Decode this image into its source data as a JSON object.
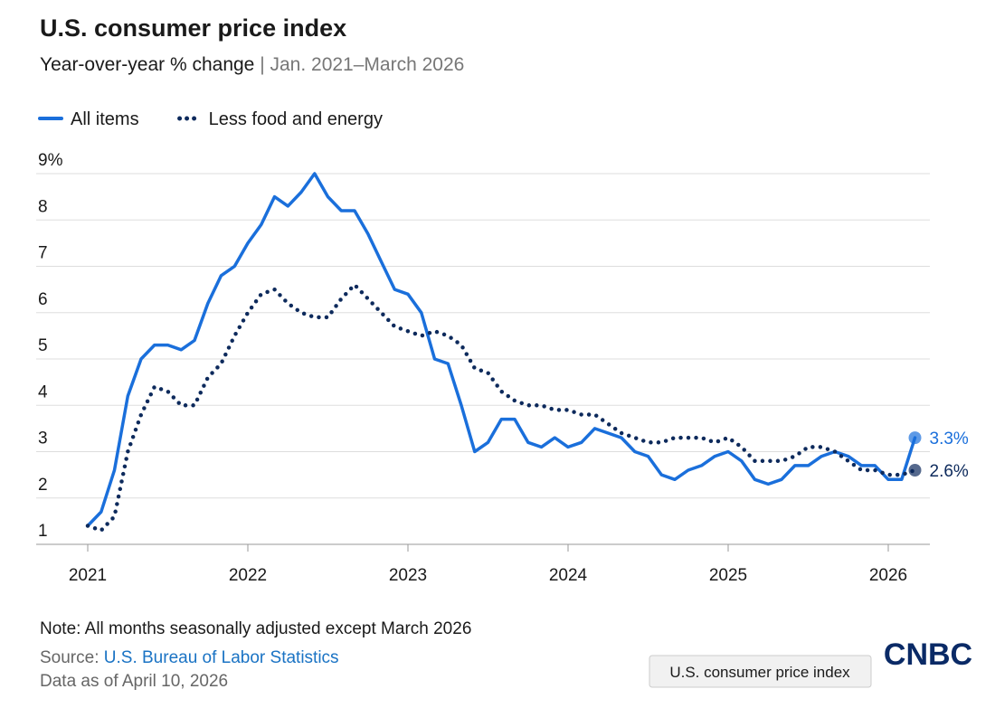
{
  "chart_data": {
    "type": "line",
    "title": "U.S. consumer price index",
    "subtitle": "Year-over-year % change",
    "subtitle_range": "| Jan. 2021–March 2026",
    "categories": [
      "2021",
      null,
      null,
      null,
      null,
      null,
      null,
      null,
      null,
      null,
      null,
      null,
      "2022",
      null,
      null,
      null,
      null,
      null,
      null,
      null,
      null,
      null,
      null,
      null,
      "2023",
      null,
      null,
      null,
      null,
      null,
      null,
      null,
      null,
      null,
      null,
      null,
      "2024",
      null,
      null,
      null,
      null,
      null,
      null,
      null,
      null,
      null,
      null,
      null,
      "2025",
      null,
      null,
      null,
      null,
      null,
      null,
      null,
      null,
      null,
      null,
      null,
      "2026",
      null,
      null
    ],
    "series": [
      {
        "name": "All items",
        "color": "#1a6fdb",
        "style": "solid",
        "values": [
          1.4,
          1.7,
          2.6,
          4.2,
          5.0,
          5.3,
          5.3,
          5.2,
          5.4,
          6.2,
          6.8,
          7.0,
          7.5,
          7.9,
          8.5,
          8.3,
          8.6,
          9.0,
          8.5,
          8.2,
          8.2,
          7.7,
          7.1,
          6.5,
          6.4,
          6.0,
          5.0,
          4.9,
          4.0,
          3.0,
          3.2,
          3.7,
          3.7,
          3.2,
          3.1,
          3.3,
          3.1,
          3.2,
          3.5,
          3.4,
          3.3,
          3.0,
          2.9,
          2.5,
          2.4,
          2.6,
          2.7,
          2.9,
          3.0,
          2.8,
          2.4,
          2.3,
          2.4,
          2.7,
          2.7,
          2.9,
          3.0,
          2.9,
          2.7,
          2.7,
          2.4,
          2.4,
          3.3
        ],
        "value_labels": [
          null,
          null,
          null,
          null,
          null,
          null,
          null,
          null,
          null,
          null,
          null,
          null,
          null,
          null,
          null,
          null,
          null,
          null,
          null,
          null,
          null,
          null,
          null,
          null,
          null,
          null,
          null,
          null,
          null,
          null,
          null,
          null,
          null,
          null,
          null,
          null,
          null,
          null,
          null,
          null,
          null,
          null,
          null,
          null,
          null,
          null,
          null,
          null,
          null,
          null,
          null,
          null,
          null,
          null,
          null,
          null,
          null,
          null,
          null,
          null,
          null,
          null,
          "3.3%"
        ]
      },
      {
        "name": "Less food and energy",
        "color": "#0d2a5c",
        "style": "dotted",
        "values": [
          1.4,
          1.3,
          1.6,
          3.0,
          3.8,
          4.4,
          4.3,
          4.0,
          4.0,
          4.6,
          4.9,
          5.5,
          6.0,
          6.4,
          6.5,
          6.2,
          6.0,
          5.9,
          5.9,
          6.3,
          6.6,
          6.3,
          6.0,
          5.7,
          5.6,
          5.5,
          5.6,
          5.5,
          5.3,
          4.8,
          4.7,
          4.3,
          4.1,
          4.0,
          4.0,
          3.9,
          3.9,
          3.8,
          3.8,
          3.6,
          3.4,
          3.3,
          3.2,
          3.2,
          3.3,
          3.3,
          3.3,
          3.2,
          3.3,
          3.1,
          2.8,
          2.8,
          2.8,
          2.9,
          3.1,
          3.1,
          3.0,
          2.8,
          2.6,
          2.6,
          2.5,
          2.5,
          2.6
        ],
        "value_labels": [
          null,
          null,
          null,
          null,
          null,
          null,
          null,
          null,
          null,
          null,
          null,
          null,
          null,
          null,
          null,
          null,
          null,
          null,
          null,
          null,
          null,
          null,
          null,
          null,
          null,
          null,
          null,
          null,
          null,
          null,
          null,
          null,
          null,
          null,
          null,
          null,
          null,
          null,
          null,
          null,
          null,
          null,
          null,
          null,
          null,
          null,
          null,
          null,
          null,
          null,
          null,
          null,
          null,
          null,
          null,
          null,
          null,
          null,
          null,
          null,
          null,
          null,
          "2.6%"
        ]
      }
    ],
    "ylim": [
      1,
      9
    ],
    "yticks": [
      1,
      2,
      3,
      4,
      5,
      6,
      7,
      8,
      {
        "value": 9,
        "label": "9%"
      }
    ],
    "grid": true,
    "legend": "top-left",
    "note": "Note: All months seasonally adjusted except March 2026",
    "source_label": "Source:",
    "source": "U.S. Bureau of Labor Statistics",
    "data_as_of": "Data as of April 10, 2026",
    "tooltip": "U.S. consumer price index",
    "logo": "CNBC"
  }
}
